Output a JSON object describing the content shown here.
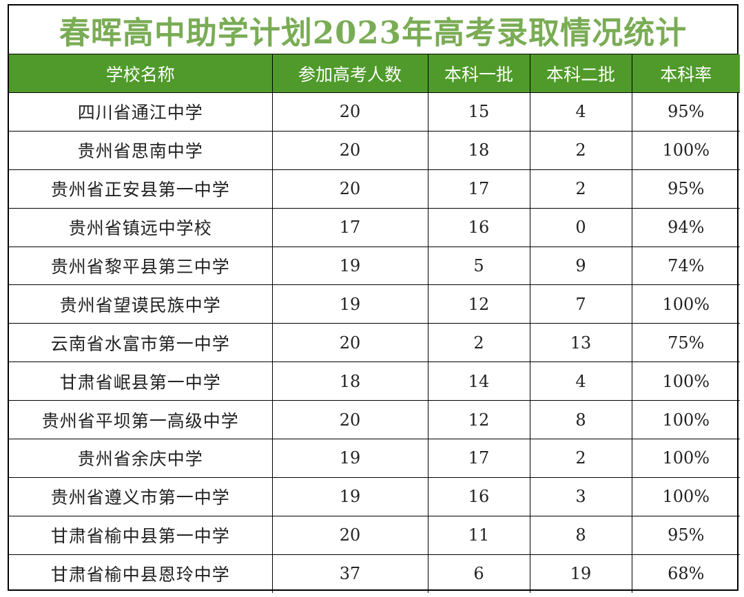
{
  "title": "春晖高中助学计划2023年高考录取情况统计",
  "colors": {
    "title_text": "#7aac55",
    "header_bg": "#4f9a2a",
    "header_text": "#ffffff",
    "border": "#000000"
  },
  "table": {
    "headers": [
      "学校名称",
      "参加高考人数",
      "本科一批",
      "本科二批",
      "本科率"
    ],
    "rows": [
      [
        "四川省通江中学",
        "20",
        "15",
        "4",
        "95%"
      ],
      [
        "贵州省思南中学",
        "20",
        "18",
        "2",
        "100%"
      ],
      [
        "贵州省正安县第一中学",
        "20",
        "17",
        "2",
        "95%"
      ],
      [
        "贵州省镇远中学校",
        "17",
        "16",
        "0",
        "94%"
      ],
      [
        "贵州省黎平县第三中学",
        "19",
        "5",
        "9",
        "74%"
      ],
      [
        "贵州省望谟民族中学",
        "19",
        "12",
        "7",
        "100%"
      ],
      [
        "云南省水富市第一中学",
        "20",
        "2",
        "13",
        "75%"
      ],
      [
        "甘肃省岷县第一中学",
        "18",
        "14",
        "4",
        "100%"
      ],
      [
        "贵州省平坝第一高级中学",
        "20",
        "12",
        "8",
        "100%"
      ],
      [
        "贵州省余庆中学",
        "19",
        "17",
        "2",
        "100%"
      ],
      [
        "贵州省遵义市第一中学",
        "19",
        "16",
        "3",
        "100%"
      ],
      [
        "甘肃省榆中县第一中学",
        "20",
        "11",
        "8",
        "95%"
      ],
      [
        "甘肃省榆中县恩玲中学",
        "37",
        "6",
        "19",
        "68%"
      ]
    ]
  }
}
